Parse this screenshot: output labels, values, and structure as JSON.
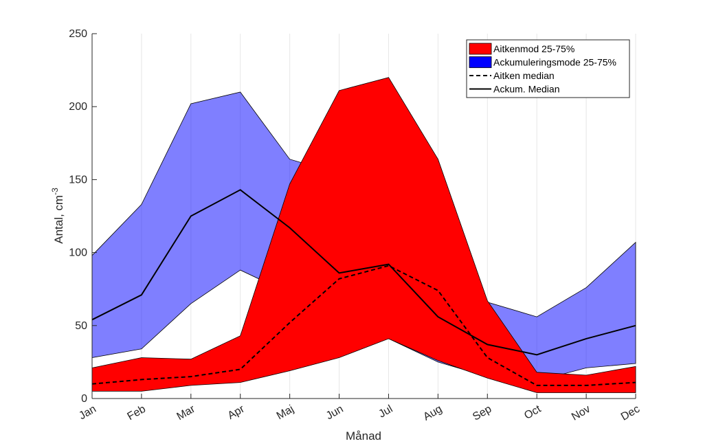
{
  "chart_data": {
    "type": "area",
    "categories": [
      "Jan",
      "Feb",
      "Mar",
      "Apr",
      "Maj",
      "Jun",
      "Jul",
      "Aug",
      "Sep",
      "Oct",
      "Nov",
      "Dec"
    ],
    "xlabel": "Månad",
    "ylabel_main": "Antal, cm",
    "ylabel_sup": "-3",
    "ylim": [
      0,
      250
    ],
    "yticks": [
      0,
      50,
      100,
      150,
      200,
      250
    ],
    "grid": "vertical",
    "legend_position": "top-right",
    "bands": [
      {
        "name": "Ackumuleringsmode 25-75%",
        "color": "#0000ff",
        "opacity": 0.5,
        "lower": [
          28,
          34,
          65,
          88,
          72,
          41,
          41,
          25,
          15,
          12,
          21,
          24
        ],
        "upper": [
          98,
          133,
          202,
          210,
          164,
          154,
          180,
          116,
          66,
          56,
          76,
          107
        ]
      },
      {
        "name": "Aitkenmod 25-75%",
        "color": "#ff0000",
        "opacity": 1,
        "lower": [
          5,
          5,
          9,
          11,
          19,
          28,
          41,
          26,
          14,
          4,
          4,
          4
        ],
        "upper": [
          21,
          28,
          27,
          43,
          147,
          211,
          220,
          164,
          67,
          18,
          16,
          22
        ]
      }
    ],
    "series": [
      {
        "name": "Aitken median",
        "style": "dashed",
        "color": "#000000",
        "values": [
          10,
          13,
          15,
          20,
          52,
          82,
          91,
          74,
          28,
          9,
          9,
          11
        ]
      },
      {
        "name": "Ackum. Median",
        "style": "solid",
        "color": "#000000",
        "values": [
          54,
          71,
          125,
          143,
          117,
          86,
          92,
          56,
          37,
          30,
          41,
          50
        ]
      }
    ],
    "legend_order": [
      "Aitkenmod 25-75%",
      "Ackumuleringsmode 25-75%",
      "Aitken median",
      "Ackum. Median"
    ]
  }
}
